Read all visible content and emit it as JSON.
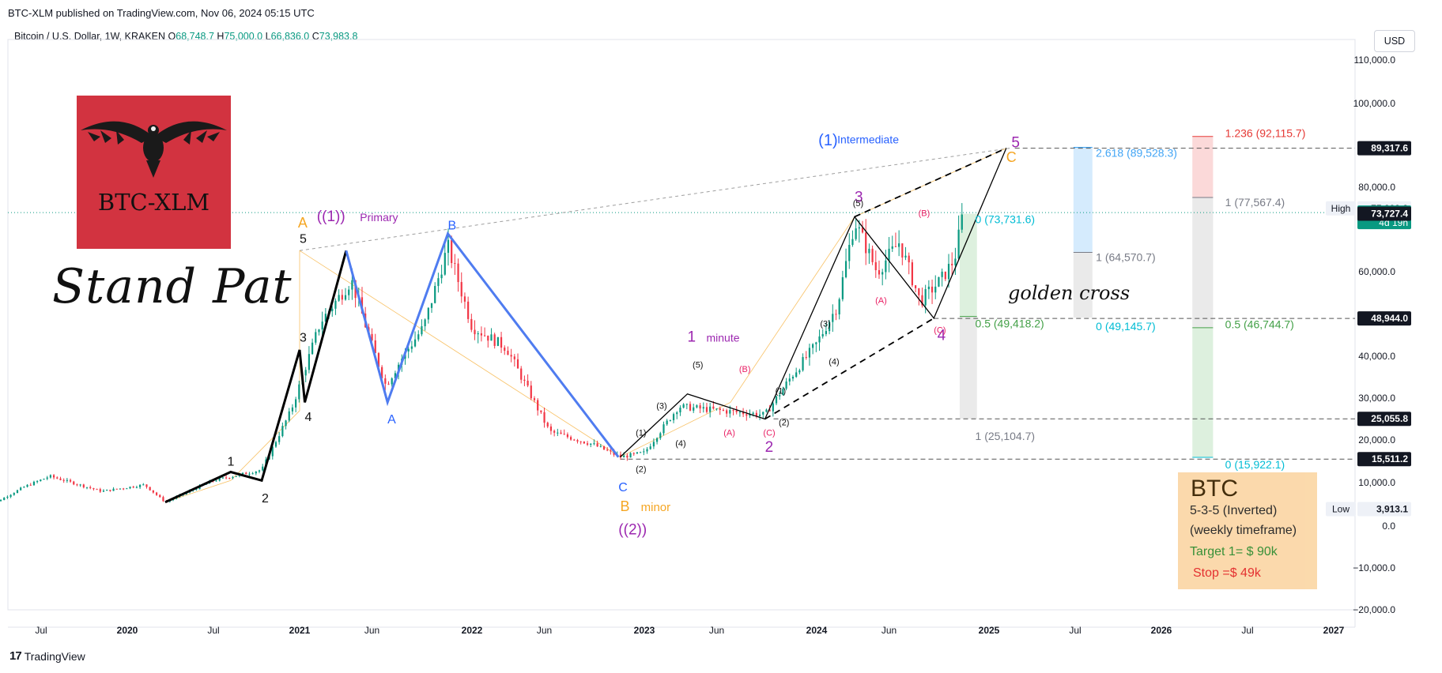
{
  "header": {
    "published": "BTC-XLM published on TradingView.com, Nov 06, 2024 05:15 UTC"
  },
  "infobar": {
    "symbol": "Bitcoin / U.S. Dollar, 1W, KRAKEN",
    "o_label": "O",
    "o": "68,748.7",
    "h_label": "H",
    "h": "75,000.0",
    "l_label": "L",
    "l": "66,836.0",
    "c_label": "C",
    "c": "73,983.8"
  },
  "currency": "USD",
  "footer": {
    "brand": "TradingView"
  },
  "logo": {
    "text": "BTC-XLM"
  },
  "title_handwritten": "Stand Pat",
  "annotation_golden": "golden cross",
  "info_box": {
    "title": "BTC",
    "line1": "5-3-5 (Inverted)",
    "line2": "(weekly timeframe)",
    "line3": "Target 1= $ 90k",
    "line4": "Stop =$ 49k"
  },
  "colors": {
    "up": "#089981",
    "down": "#f23645",
    "orange": "#f5a623",
    "blue": "#2962ff",
    "purple": "#9c27b0",
    "fib_cyan": "#00bcd4"
  },
  "chart_data": {
    "type": "candlestick",
    "ylim": [
      -20000,
      110000
    ],
    "y_ticks": [
      110000,
      100000,
      80000,
      60000,
      40000,
      30000,
      20000,
      10000,
      0,
      -10000,
      -20000
    ],
    "y_tick_labels": [
      "110,000.0",
      "100,000.0",
      "80,000.0",
      "60,000.0",
      "40,000.0",
      "30,000.0",
      "20,000.0",
      "10,000.0",
      "0.0",
      "−10,000.0",
      "−20,000.0"
    ],
    "x_ticks": [
      {
        "t": 2019.5,
        "label": "Jul"
      },
      {
        "t": 2020.0,
        "label": "2020"
      },
      {
        "t": 2020.5,
        "label": "Jul"
      },
      {
        "t": 2021.0,
        "label": "2021"
      },
      {
        "t": 2021.42,
        "label": "Jun"
      },
      {
        "t": 2022.0,
        "label": "2022"
      },
      {
        "t": 2022.42,
        "label": "Jun"
      },
      {
        "t": 2023.0,
        "label": "2023"
      },
      {
        "t": 2023.42,
        "label": "Jun"
      },
      {
        "t": 2024.0,
        "label": "2024"
      },
      {
        "t": 2024.42,
        "label": "Jun"
      },
      {
        "t": 2025.0,
        "label": "2025"
      },
      {
        "t": 2025.5,
        "label": "Jul"
      },
      {
        "t": 2026.0,
        "label": "2026"
      },
      {
        "t": 2026.5,
        "label": "Jul"
      },
      {
        "t": 2027.0,
        "label": "2027"
      }
    ],
    "price_path": [
      [
        2019.17,
        4000
      ],
      [
        2019.4,
        9000
      ],
      [
        2019.55,
        11500
      ],
      [
        2019.85,
        8000
      ],
      [
        2020.1,
        9500
      ],
      [
        2020.22,
        5500
      ],
      [
        2020.5,
        10500
      ],
      [
        2020.78,
        13000
      ],
      [
        2020.95,
        27000
      ],
      [
        2021.12,
        48000
      ],
      [
        2021.3,
        58000
      ],
      [
        2021.4,
        45000
      ],
      [
        2021.5,
        33000
      ],
      [
        2021.6,
        40000
      ],
      [
        2021.72,
        47000
      ],
      [
        2021.86,
        66000
      ],
      [
        2022.0,
        47000
      ],
      [
        2022.2,
        42000
      ],
      [
        2022.45,
        22000
      ],
      [
        2022.7,
        19000
      ],
      [
        2022.86,
        16000
      ],
      [
        2023.0,
        17000
      ],
      [
        2023.2,
        28000
      ],
      [
        2023.45,
        27000
      ],
      [
        2023.7,
        26000
      ],
      [
        2023.85,
        35000
      ],
      [
        2024.0,
        43000
      ],
      [
        2024.12,
        52000
      ],
      [
        2024.22,
        72000
      ],
      [
        2024.35,
        60000
      ],
      [
        2024.48,
        67000
      ],
      [
        2024.6,
        53000
      ],
      [
        2024.72,
        58000
      ],
      [
        2024.8,
        63000
      ],
      [
        2024.85,
        73984
      ]
    ],
    "price_tags": [
      {
        "value": 89317.6,
        "label": "89,317.6",
        "style": "dark"
      },
      {
        "value": 75000.0,
        "label": "75,000.0",
        "style": "light",
        "tag": "High"
      },
      {
        "value": 73983.8,
        "label": "73,983.8",
        "style": "green",
        "sub": "4d 19h"
      },
      {
        "value": 73727.4,
        "label": "73,727.4",
        "style": "dark"
      },
      {
        "value": 48944.0,
        "label": "48,944.0",
        "style": "dark"
      },
      {
        "value": 25055.8,
        "label": "25,055.8",
        "style": "dark"
      },
      {
        "value": 15511.2,
        "label": "15,511.2",
        "style": "dark"
      },
      {
        "value": 3913.1,
        "label": "3,913.1",
        "style": "light",
        "tag": "Low"
      }
    ],
    "wave_labels": [
      {
        "t": 2024.01,
        "v": 90000,
        "text": "(1)",
        "cls": "blue-big"
      },
      {
        "t": 2024.12,
        "v": 90500,
        "text": "Intermediate",
        "cls": "blue-sm"
      },
      {
        "t": 2025.1,
        "v": 86000,
        "text": "C",
        "cls": "orange"
      },
      {
        "t": 2025.13,
        "v": 89500,
        "text": "5",
        "cls": "purple-big"
      },
      {
        "t": 2021.1,
        "v": 72000,
        "text": "((1))",
        "cls": "purple-big"
      },
      {
        "t": 2021.35,
        "v": 72000,
        "text": "Primary",
        "cls": "purple-sm"
      },
      {
        "t": 2020.99,
        "v": 70500,
        "text": "A",
        "cls": "orange"
      },
      {
        "t": 2021.0,
        "v": 66800,
        "text": "5",
        "cls": "black"
      },
      {
        "t": 2021.86,
        "v": 70000,
        "text": "B",
        "cls": "blue"
      },
      {
        "t": 2021.0,
        "v": 43500,
        "text": "3",
        "cls": "black"
      },
      {
        "t": 2021.03,
        "v": 24500,
        "text": "4",
        "cls": "black"
      },
      {
        "t": 2020.58,
        "v": 14000,
        "text": "1",
        "cls": "black"
      },
      {
        "t": 2020.78,
        "v": 5500,
        "text": "2",
        "cls": "black"
      },
      {
        "t": 2021.51,
        "v": 24000,
        "text": "A",
        "cls": "blue"
      },
      {
        "t": 2022.85,
        "v": 8000,
        "text": "C",
        "cls": "blue"
      },
      {
        "t": 2022.86,
        "v": 3500,
        "text": "B",
        "cls": "orange"
      },
      {
        "t": 2022.98,
        "v": 3500,
        "text": "minor",
        "cls": "orange-sm"
      },
      {
        "t": 2022.85,
        "v": -2000,
        "text": "((2))",
        "cls": "purple-big"
      },
      {
        "t": 2023.25,
        "v": 43500,
        "text": "1",
        "cls": "purple-big"
      },
      {
        "t": 2023.36,
        "v": 43500,
        "text": "minute",
        "cls": "purple-sm"
      },
      {
        "t": 2023.7,
        "v": 17200,
        "text": "2",
        "cls": "purple-big"
      },
      {
        "t": 2024.22,
        "v": 76500,
        "text": "3",
        "cls": "purple-big"
      },
      {
        "t": 2024.7,
        "v": 43800,
        "text": "4",
        "cls": "purple-big"
      },
      {
        "t": 2024.21,
        "v": 75500,
        "text": "(5)",
        "cls": "black-xs"
      },
      {
        "t": 2024.59,
        "v": 73200,
        "text": "(B)",
        "cls": "pink-xs"
      },
      {
        "t": 2024.34,
        "v": 52500,
        "text": "(A)",
        "cls": "pink-xs"
      },
      {
        "t": 2024.68,
        "v": 45500,
        "text": "(C)",
        "cls": "pink-xs"
      },
      {
        "t": 2022.95,
        "v": 21000,
        "text": "(1)",
        "cls": "black-xs"
      },
      {
        "t": 2022.95,
        "v": 12500,
        "text": "(2)",
        "cls": "black-xs"
      },
      {
        "t": 2023.07,
        "v": 27500,
        "text": "(3)",
        "cls": "black-xs"
      },
      {
        "t": 2023.18,
        "v": 18500,
        "text": "(4)",
        "cls": "black-xs"
      },
      {
        "t": 2023.28,
        "v": 37300,
        "text": "(5)",
        "cls": "black-xs"
      },
      {
        "t": 2023.46,
        "v": 21000,
        "text": "(A)",
        "cls": "pink-xs"
      },
      {
        "t": 2023.55,
        "v": 36200,
        "text": "(B)",
        "cls": "pink-xs"
      },
      {
        "t": 2023.69,
        "v": 21000,
        "text": "(C)",
        "cls": "pink-xs"
      },
      {
        "t": 2023.76,
        "v": 31000,
        "text": "(1)",
        "cls": "black-xs"
      },
      {
        "t": 2023.78,
        "v": 23500,
        "text": "(2)",
        "cls": "black-xs"
      },
      {
        "t": 2024.02,
        "v": 47000,
        "text": "(3)",
        "cls": "black-xs"
      },
      {
        "t": 2024.07,
        "v": 38000,
        "text": "(4)",
        "cls": "black-xs"
      }
    ],
    "fib_labels": [
      {
        "t": 2025.62,
        "v": 87300,
        "text": "2.618 (89,528.3)",
        "color": "#42a5f5"
      },
      {
        "t": 2025.62,
        "v": 62500,
        "text": "1 (64,570.7)",
        "color": "#787b86"
      },
      {
        "t": 2025.62,
        "v": 46200,
        "text": "0 (49,145.7)",
        "color": "#00bcd4"
      },
      {
        "t": 2024.92,
        "v": 71500,
        "text": "0 (73,731.6)",
        "color": "#00bcd4"
      },
      {
        "t": 2024.92,
        "v": 46800,
        "text": "0.5 (49,418.2)",
        "color": "#43a047"
      },
      {
        "t": 2024.92,
        "v": 20000,
        "text": "1 (25,104.7)",
        "color": "#787b86"
      },
      {
        "t": 2026.37,
        "v": 92000,
        "text": "1.236 (92,115.7)",
        "color": "#e53935"
      },
      {
        "t": 2026.37,
        "v": 75500,
        "text": "1 (77,567.4)",
        "color": "#787b86"
      },
      {
        "t": 2026.37,
        "v": 46600,
        "text": "0.5 (46,744.7)",
        "color": "#43a047"
      },
      {
        "t": 2026.37,
        "v": 13300,
        "text": "0 (15,922.1)",
        "color": "#00bcd4"
      }
    ]
  }
}
